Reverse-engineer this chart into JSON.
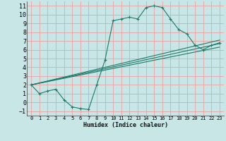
{
  "xlabel": "Humidex (Indice chaleur)",
  "xlim": [
    -0.5,
    23.5
  ],
  "ylim": [
    -1.5,
    11.5
  ],
  "xticks": [
    0,
    1,
    2,
    3,
    4,
    5,
    6,
    7,
    8,
    9,
    10,
    11,
    12,
    13,
    14,
    15,
    16,
    17,
    18,
    19,
    20,
    21,
    22,
    23
  ],
  "yticks": [
    -1,
    0,
    1,
    2,
    3,
    4,
    5,
    6,
    7,
    8,
    9,
    10,
    11
  ],
  "bg_color": "#c8e6e6",
  "grid_color": "#e8a8a8",
  "line_color": "#1a7a6a",
  "curve_x": [
    0,
    1,
    2,
    3,
    4,
    5,
    6,
    7,
    8,
    9,
    10,
    11,
    12,
    13,
    14,
    15,
    16,
    17,
    18,
    19,
    20,
    21,
    22,
    23
  ],
  "curve_y": [
    2.0,
    1.0,
    1.3,
    1.5,
    0.3,
    -0.5,
    -0.7,
    -0.8,
    2.0,
    4.8,
    9.3,
    9.5,
    9.7,
    9.5,
    10.8,
    11.0,
    10.8,
    9.5,
    8.3,
    7.8,
    6.5,
    6.0,
    6.5,
    6.8
  ],
  "straight_lines": [
    {
      "x": [
        0,
        23
      ],
      "y": [
        2.0,
        6.3
      ]
    },
    {
      "x": [
        0,
        23
      ],
      "y": [
        2.0,
        6.7
      ]
    },
    {
      "x": [
        0,
        23
      ],
      "y": [
        2.0,
        7.1
      ]
    }
  ]
}
